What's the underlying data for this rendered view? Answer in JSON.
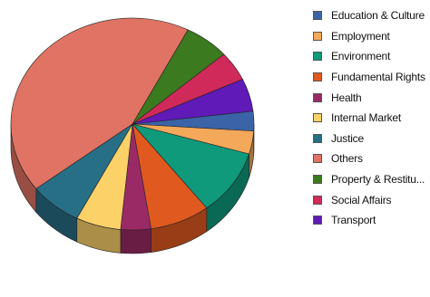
{
  "chart_data": {
    "type": "pie",
    "title": "",
    "categories": [
      "Education & Culture",
      "Employment",
      "Environment",
      "Fundamental Rights",
      "Health",
      "Internal Market",
      "Justice",
      "Others",
      "Property & Restitu...",
      "Social Affairs",
      "Transport"
    ],
    "values": [
      3,
      3.5,
      10,
      8,
      4,
      6,
      7,
      43,
      6,
      4.5,
      5
    ],
    "colors": [
      "#3b64a8",
      "#f4a85a",
      "#0f9a7c",
      "#e0591f",
      "#9a2a66",
      "#fcd168",
      "#276f86",
      "#e07363",
      "#3b7a1e",
      "#d02a5a",
      "#5f1ab7"
    ],
    "legend_position": "right",
    "style": "3d"
  }
}
